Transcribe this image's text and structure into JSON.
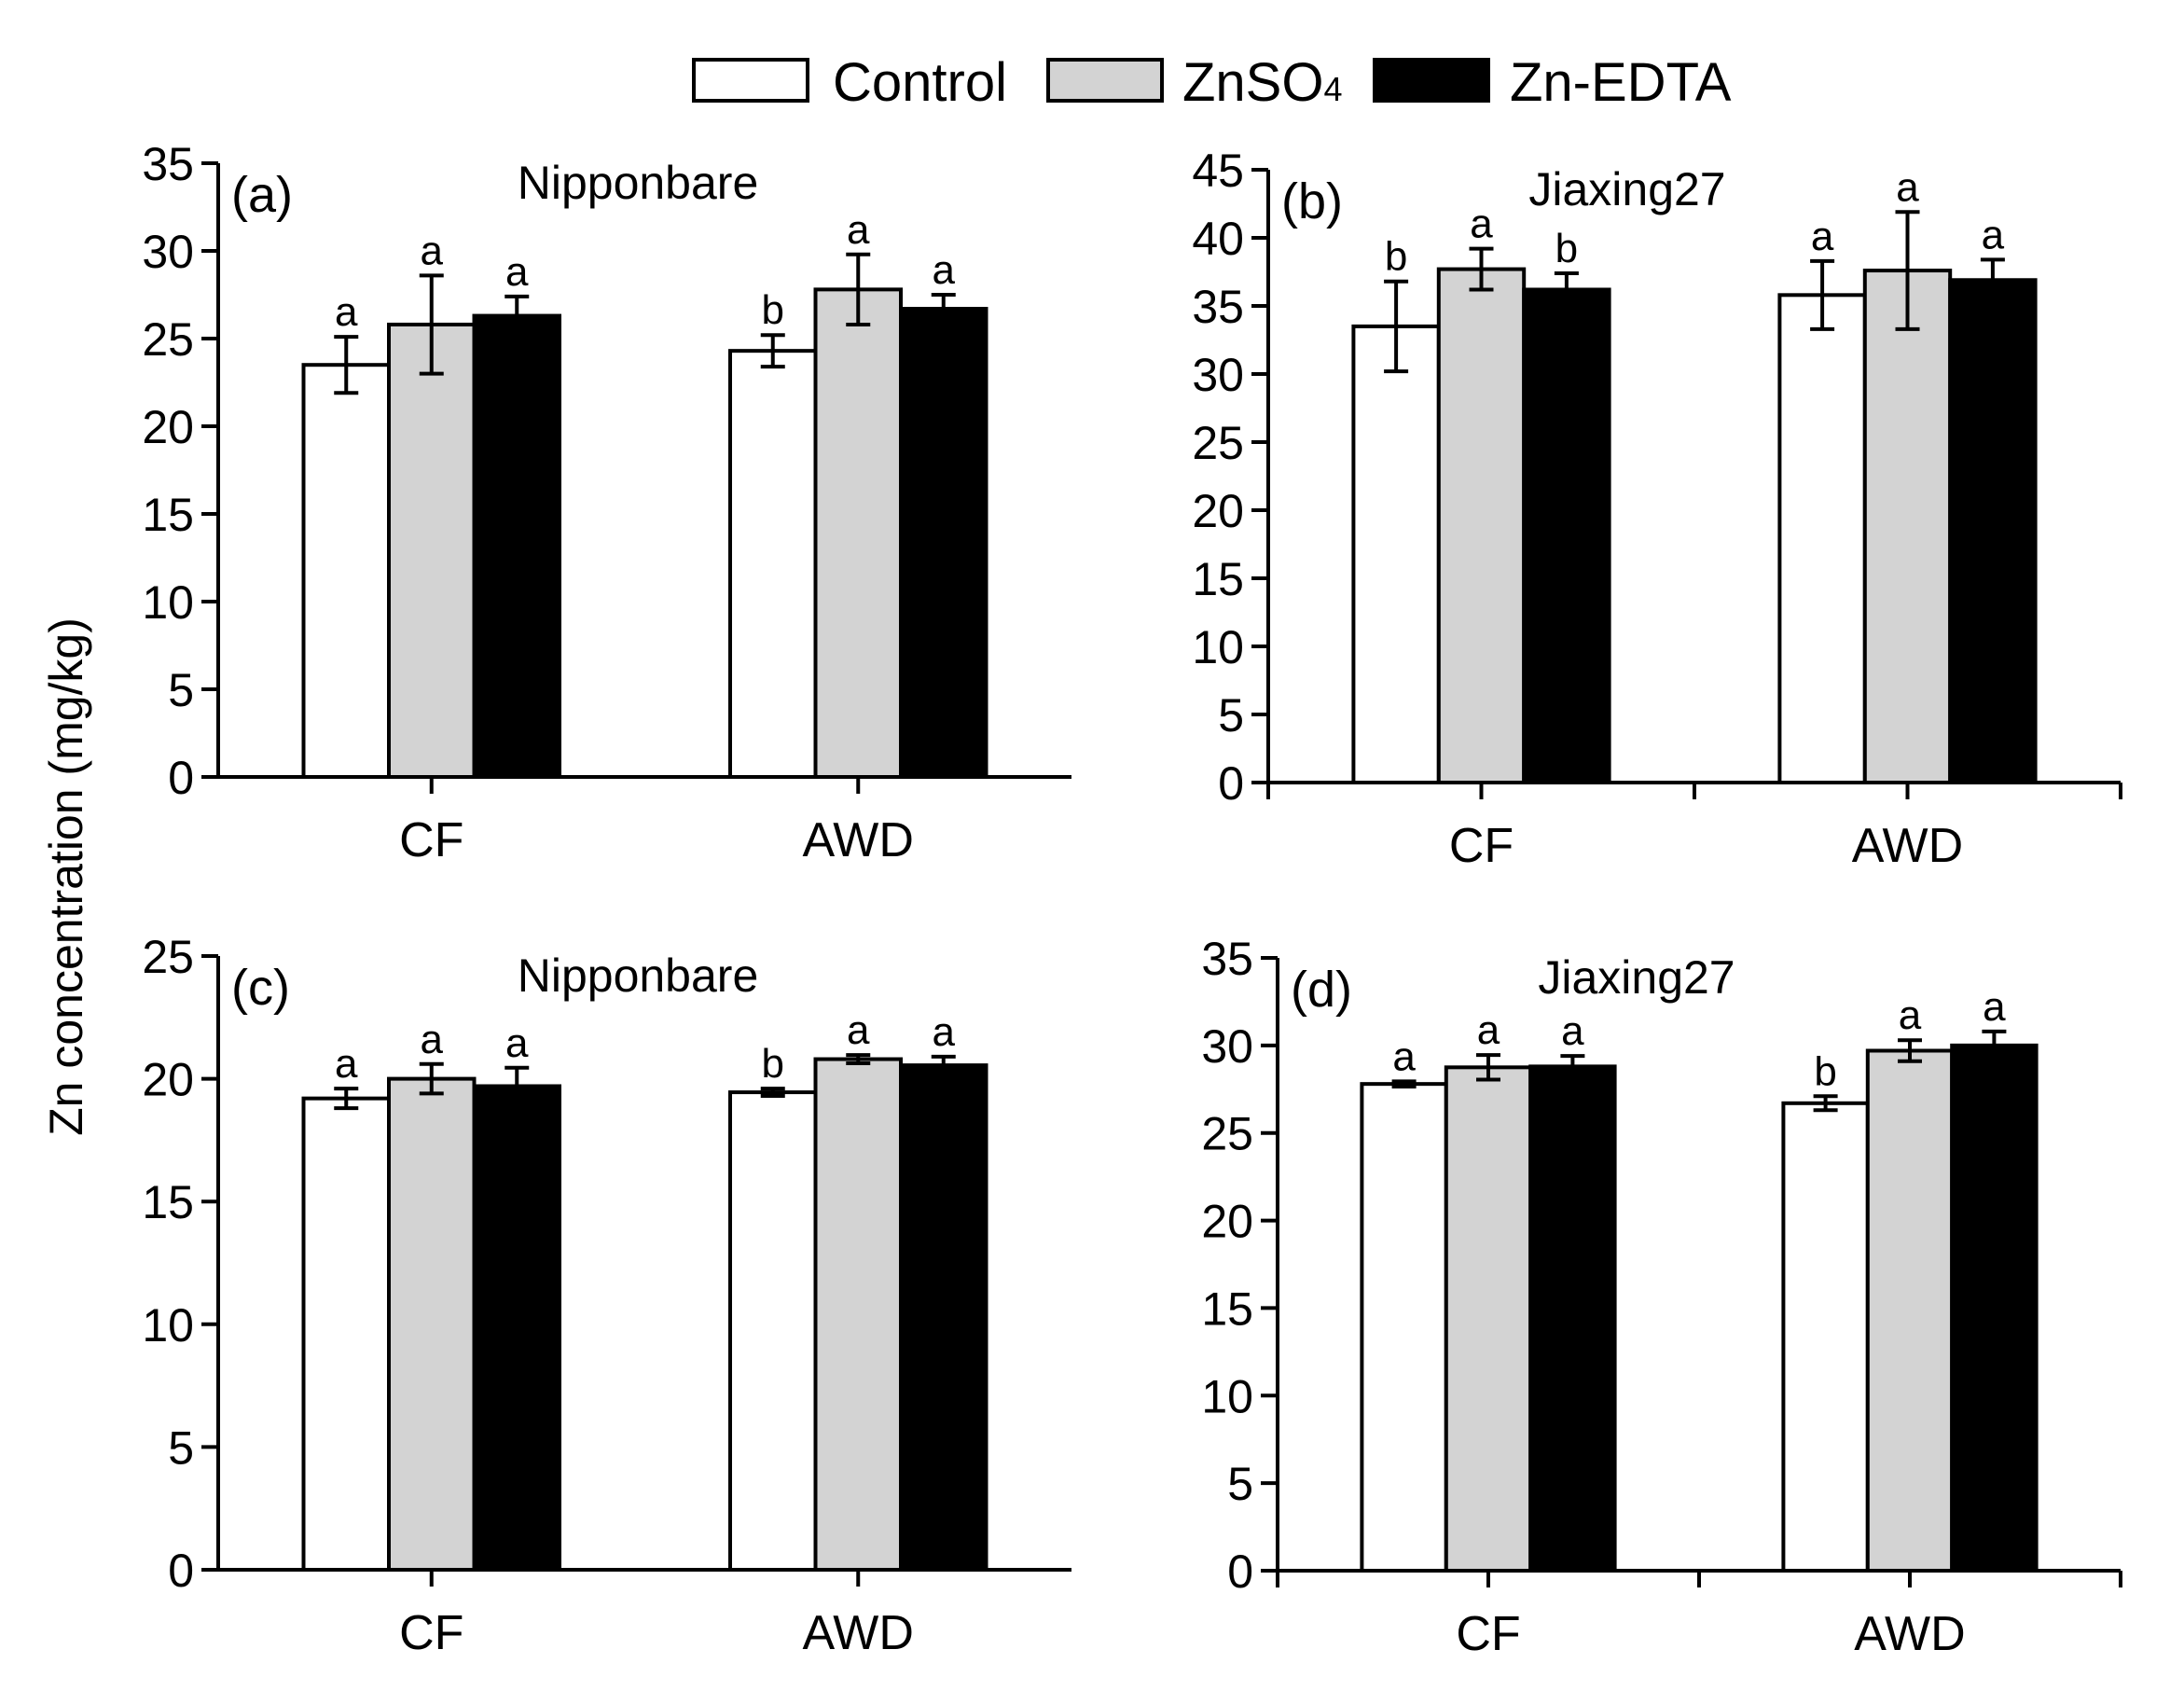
{
  "legend": {
    "items": [
      {
        "label": "Control",
        "sub": "",
        "fill": "#ffffff"
      },
      {
        "label": "ZnSO",
        "sub": "4",
        "fill": "#d3d3d3"
      },
      {
        "label": "Zn-EDTA",
        "sub": "",
        "fill": "#000000"
      }
    ]
  },
  "ylabel": "Zn concentration (mg/kg)",
  "chart_data": [
    {
      "type": "bar",
      "panel": "(a)",
      "title": "Nipponbare",
      "categories": [
        "CF",
        "AWD"
      ],
      "ylim": [
        0,
        35
      ],
      "yticks": [
        0,
        5,
        10,
        15,
        20,
        25,
        30,
        35
      ],
      "xlabel": "",
      "ylabel": "Zn concentration (mg/kg)",
      "series": [
        {
          "name": "Control",
          "values": [
            23.5,
            24.3
          ],
          "errors": [
            1.6,
            0.9
          ],
          "letters": [
            "a",
            "b"
          ]
        },
        {
          "name": "ZnSO4",
          "values": [
            25.8,
            27.8
          ],
          "errors": [
            2.8,
            2.0
          ],
          "letters": [
            "a",
            "a"
          ]
        },
        {
          "name": "Zn-EDTA",
          "values": [
            26.3,
            26.7
          ],
          "errors": [
            1.1,
            0.8
          ],
          "letters": [
            "a",
            "a"
          ]
        }
      ]
    },
    {
      "type": "bar",
      "panel": "(b)",
      "title": "Jiaxing27",
      "categories": [
        "CF",
        "AWD"
      ],
      "ylim": [
        0,
        45
      ],
      "yticks": [
        0,
        5,
        10,
        15,
        20,
        25,
        30,
        35,
        40,
        45
      ],
      "xlabel": "",
      "ylabel": "Zn concentration (mg/kg)",
      "series": [
        {
          "name": "Control",
          "values": [
            33.5,
            35.8
          ],
          "errors": [
            3.3,
            2.5
          ],
          "letters": [
            "b",
            "a"
          ]
        },
        {
          "name": "ZnSO4",
          "values": [
            37.7,
            37.6
          ],
          "errors": [
            1.5,
            4.3
          ],
          "letters": [
            "a",
            "a"
          ]
        },
        {
          "name": "Zn-EDTA",
          "values": [
            36.2,
            36.9
          ],
          "errors": [
            1.2,
            1.5
          ],
          "letters": [
            "b",
            "a"
          ]
        }
      ]
    },
    {
      "type": "bar",
      "panel": "(c)",
      "title": "Nipponbare",
      "categories": [
        "CF",
        "AWD"
      ],
      "ylim": [
        0,
        25
      ],
      "yticks": [
        0,
        5,
        10,
        15,
        20,
        25
      ],
      "xlabel": "",
      "ylabel": "Zn concentration (mg/kg)",
      "series": [
        {
          "name": "Control",
          "values": [
            19.2,
            19.45
          ],
          "errors": [
            0.4,
            0.15
          ],
          "letters": [
            "a",
            "b"
          ]
        },
        {
          "name": "ZnSO4",
          "values": [
            20.0,
            20.8
          ],
          "errors": [
            0.6,
            0.17
          ],
          "letters": [
            "a",
            "a"
          ]
        },
        {
          "name": "Zn-EDTA",
          "values": [
            19.7,
            20.55
          ],
          "errors": [
            0.75,
            0.35
          ],
          "letters": [
            "a",
            "a"
          ]
        }
      ]
    },
    {
      "type": "bar",
      "panel": "(d)",
      "title": "Jiaxing27",
      "categories": [
        "CF",
        "AWD"
      ],
      "ylim": [
        0,
        35
      ],
      "yticks": [
        0,
        5,
        10,
        15,
        20,
        25,
        30,
        35
      ],
      "xlabel": "",
      "ylabel": "Zn concentration (mg/kg)",
      "series": [
        {
          "name": "Control",
          "values": [
            27.8,
            26.7
          ],
          "errors": [
            0.15,
            0.4
          ],
          "letters": [
            "a",
            "b"
          ]
        },
        {
          "name": "ZnSO4",
          "values": [
            28.75,
            29.7
          ],
          "errors": [
            0.7,
            0.6
          ],
          "letters": [
            "a",
            "a"
          ]
        },
        {
          "name": "Zn-EDTA",
          "values": [
            28.8,
            30.0
          ],
          "errors": [
            0.6,
            0.8
          ],
          "letters": [
            "a",
            "a"
          ]
        }
      ]
    }
  ]
}
